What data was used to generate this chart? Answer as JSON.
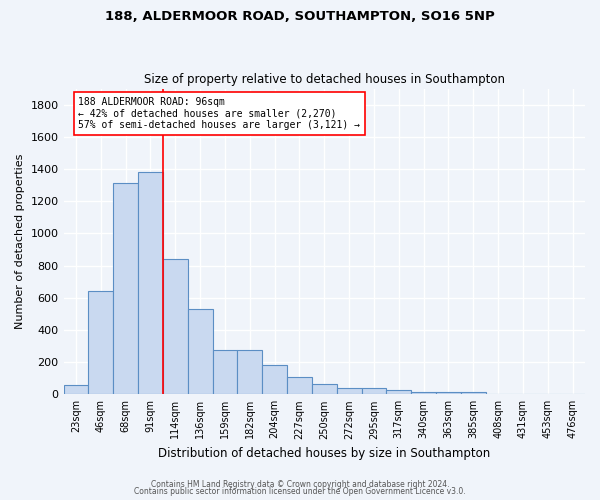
{
  "title1": "188, ALDERMOOR ROAD, SOUTHAMPTON, SO16 5NP",
  "title2": "Size of property relative to detached houses in Southampton",
  "xlabel": "Distribution of detached houses by size in Southampton",
  "ylabel": "Number of detached properties",
  "bar_labels": [
    "23sqm",
    "46sqm",
    "68sqm",
    "91sqm",
    "114sqm",
    "136sqm",
    "159sqm",
    "182sqm",
    "204sqm",
    "227sqm",
    "250sqm",
    "272sqm",
    "295sqm",
    "317sqm",
    "340sqm",
    "363sqm",
    "385sqm",
    "408sqm",
    "431sqm",
    "453sqm",
    "476sqm"
  ],
  "bar_values": [
    55,
    645,
    1310,
    1380,
    840,
    530,
    275,
    275,
    185,
    105,
    65,
    37,
    37,
    25,
    12,
    12,
    15,
    0,
    0,
    0,
    0
  ],
  "bar_color": "#c9d9f0",
  "bar_edge_color": "#5b8ec4",
  "vline_x": 3.5,
  "vline_color": "red",
  "annotation_text": "188 ALDERMOOR ROAD: 96sqm\n← 42% of detached houses are smaller (2,270)\n57% of semi-detached houses are larger (3,121) →",
  "annotation_box_color": "white",
  "annotation_box_edge_color": "red",
  "ylim": [
    0,
    1900
  ],
  "yticks": [
    0,
    200,
    400,
    600,
    800,
    1000,
    1200,
    1400,
    1600,
    1800
  ],
  "fig_bg_color": "#f0f4fa",
  "plot_bg_color": "#f0f4fa",
  "footer1": "Contains HM Land Registry data © Crown copyright and database right 2024.",
  "footer2": "Contains public sector information licensed under the Open Government Licence v3.0.",
  "grid_color": "white"
}
